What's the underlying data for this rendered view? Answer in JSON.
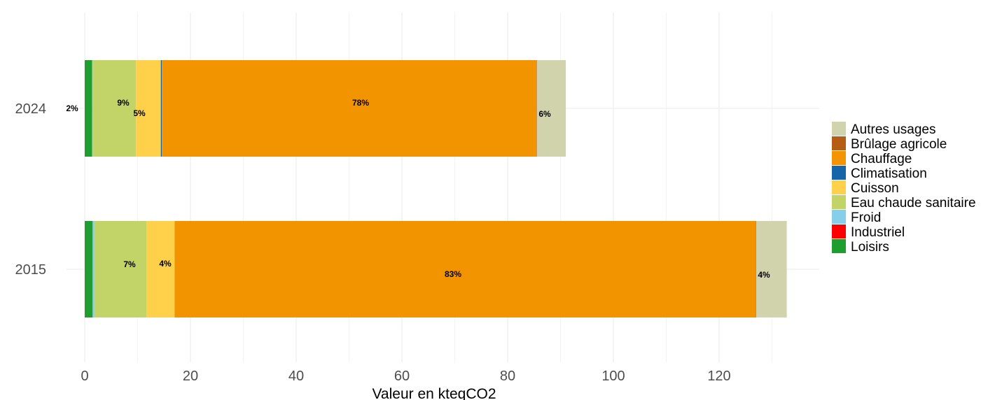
{
  "chart_data": {
    "type": "bar",
    "orientation": "horizontal",
    "stacked": true,
    "title": "",
    "xlabel": "Valeur en kteqCO2",
    "ylabel": "",
    "xlim": [
      0,
      138
    ],
    "x_ticks": [
      "0",
      "20",
      "40",
      "60",
      "80",
      "100",
      "120"
    ],
    "x_tick_values": [
      0,
      20,
      40,
      60,
      80,
      100,
      120
    ],
    "grid": true,
    "legend_position": "right",
    "categories": [
      "2024",
      "2015"
    ],
    "series": [
      {
        "name": "Loisirs",
        "color": "#1f9e2f",
        "values": [
          1.4,
          1.5
        ],
        "labels": [
          "2%",
          ""
        ]
      },
      {
        "name": "Froid",
        "color": "#87ceeb",
        "values": [
          0.1,
          0.3
        ],
        "labels": [
          "",
          ""
        ]
      },
      {
        "name": "Industriel",
        "color": "#ff0000",
        "values": [
          0.0,
          0.0
        ],
        "labels": [
          "",
          ""
        ]
      },
      {
        "name": "Eau chaude sanitaire",
        "color": "#c2d468",
        "values": [
          8.2,
          9.9
        ],
        "labels": [
          "9%",
          "7%"
        ]
      },
      {
        "name": "Cuisson",
        "color": "#ffd14a",
        "values": [
          4.7,
          5.3
        ],
        "labels": [
          "5%",
          "4%"
        ]
      },
      {
        "name": "Climatisation",
        "color": "#1466a8",
        "values": [
          0.2,
          0.0
        ],
        "labels": [
          "",
          ""
        ]
      },
      {
        "name": "Chauffage",
        "color": "#f29400",
        "values": [
          70.8,
          109.9
        ],
        "labels": [
          "78%",
          "83%"
        ]
      },
      {
        "name": "Brûlage agricole",
        "color": "#b55d12",
        "values": [
          0.1,
          0.1
        ],
        "labels": [
          "",
          ""
        ]
      },
      {
        "name": "Autres usages",
        "color": "#d1d3ad",
        "values": [
          5.5,
          5.8
        ],
        "labels": [
          "6%",
          "4%"
        ]
      }
    ],
    "legend": [
      {
        "name": "Autres usages",
        "color": "#d1d3ad"
      },
      {
        "name": "Brûlage agricole",
        "color": "#b55d12"
      },
      {
        "name": "Chauffage",
        "color": "#f29400"
      },
      {
        "name": "Climatisation",
        "color": "#1466a8"
      },
      {
        "name": "Cuisson",
        "color": "#ffd14a"
      },
      {
        "name": "Eau chaude sanitaire",
        "color": "#c2d468"
      },
      {
        "name": "Froid",
        "color": "#87ceeb"
      },
      {
        "name": "Industriel",
        "color": "#ff0000"
      },
      {
        "name": "Loisirs",
        "color": "#1f9e2f"
      }
    ]
  }
}
